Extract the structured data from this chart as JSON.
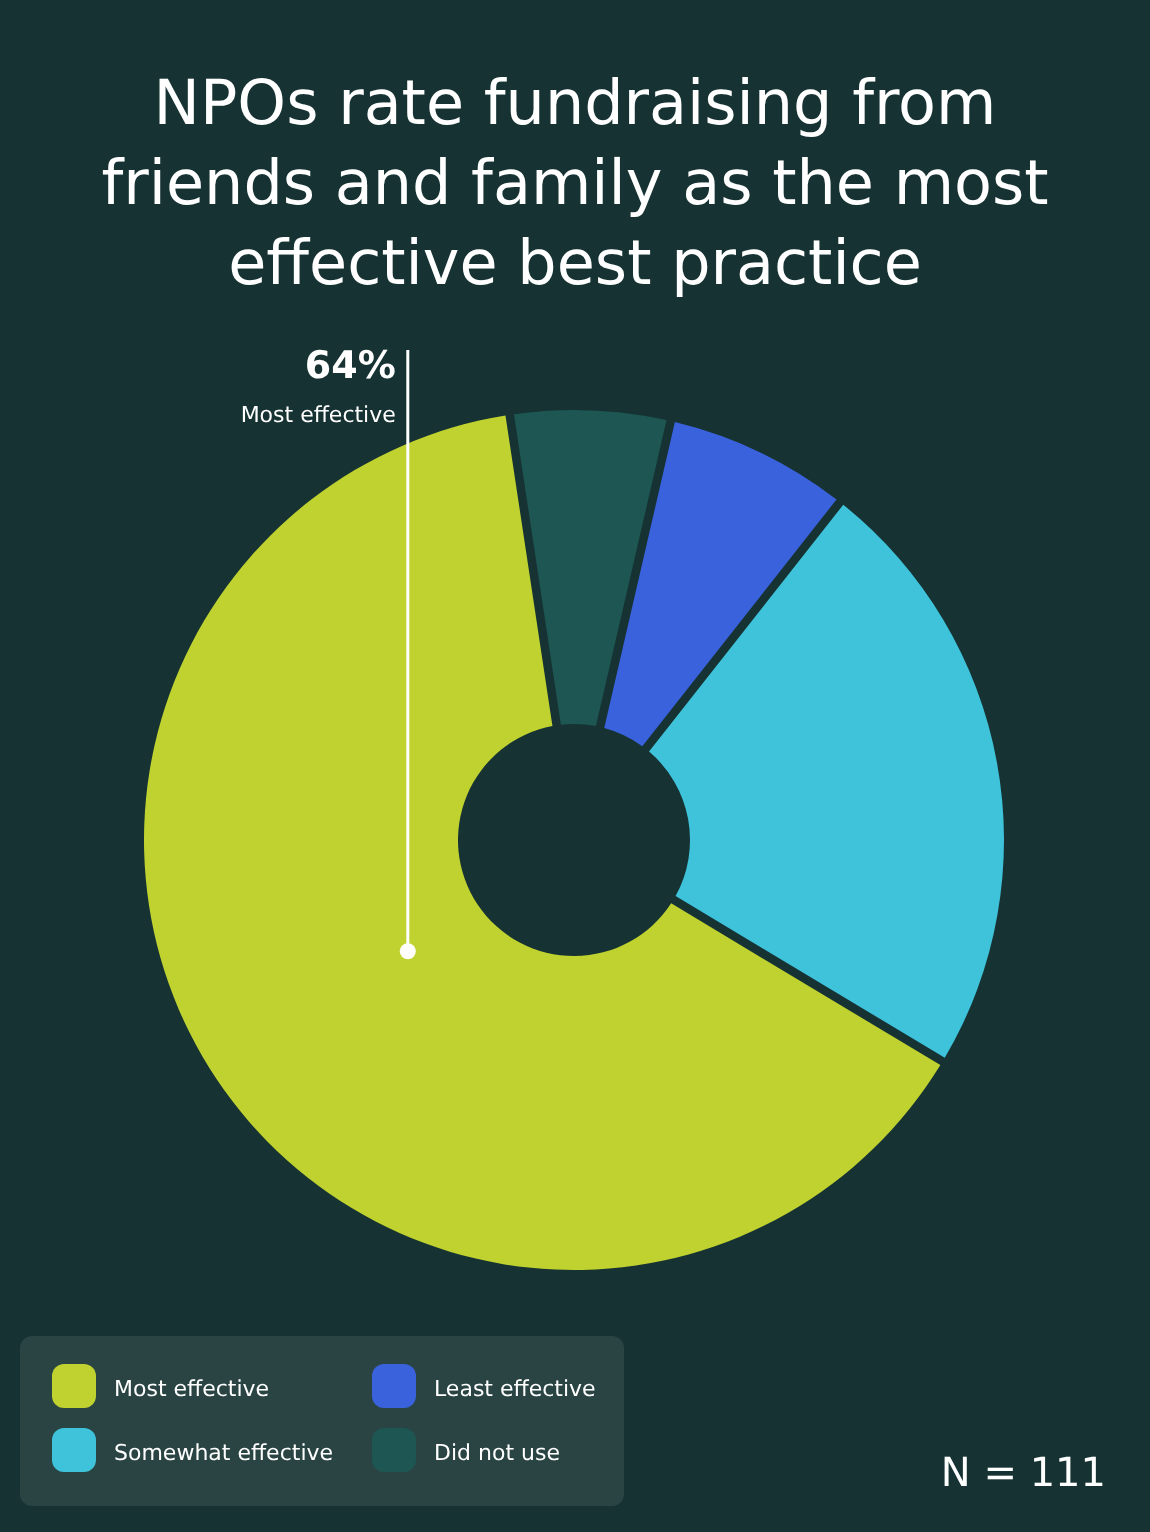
{
  "chart_data": {
    "type": "donut",
    "title": "NPOs rate fundraising from friends and family as the most effective best practice",
    "categories": [
      "Most effective",
      "Did not use",
      "Least effective",
      "Somewhat effective"
    ],
    "values": [
      64,
      6,
      7,
      23
    ],
    "colors": [
      "#bfd230",
      "#1d5652",
      "#3a62dc",
      "#3ec3da"
    ],
    "value_labels": [
      "64%",
      null,
      null,
      null
    ],
    "legend": "bottom left",
    "annotations": [
      "N = 111"
    ]
  }
}
